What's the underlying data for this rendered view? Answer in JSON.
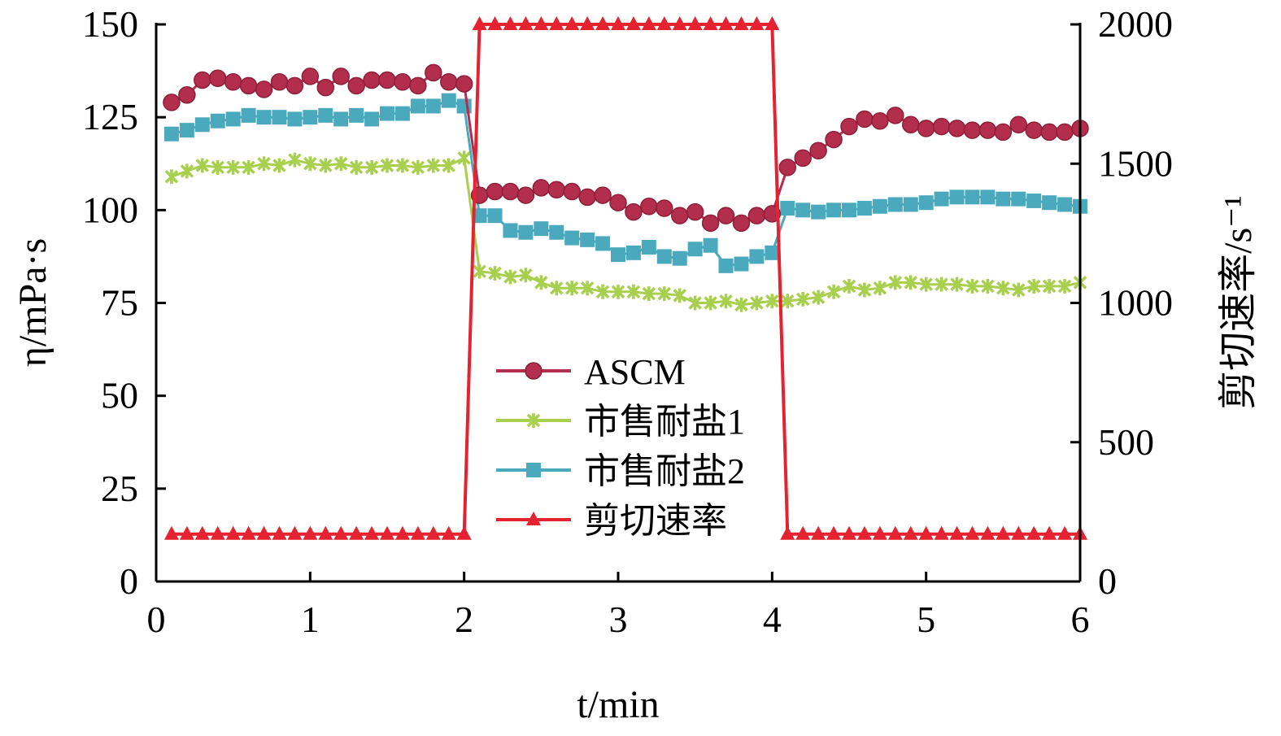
{
  "chart_data": {
    "type": "line",
    "xlabel": "t/min",
    "ylabel_left": "η/mPa·s",
    "ylabel_right": "剪切速率/s⁻¹",
    "xlim": [
      0,
      6
    ],
    "ylim_left": [
      0,
      150
    ],
    "ylim_right": [
      0,
      2000
    ],
    "xticks": [
      "0",
      "1",
      "2",
      "3",
      "4",
      "5",
      "6"
    ],
    "yticks_left": [
      "0",
      "25",
      "50",
      "75",
      "100",
      "125",
      "150"
    ],
    "yticks_right": [
      "0",
      "500",
      "1000",
      "1500",
      "2000"
    ],
    "grid": false,
    "legend_position": "center",
    "series": [
      {
        "name": "ASCM",
        "axis": "left",
        "color": "#b32d4c",
        "marker": "circle",
        "points": [
          [
            0.1,
            129
          ],
          [
            0.2,
            131
          ],
          [
            0.3,
            135
          ],
          [
            0.4,
            135.5
          ],
          [
            0.5,
            134.5
          ],
          [
            0.6,
            133.5
          ],
          [
            0.7,
            132.5
          ],
          [
            0.8,
            134.5
          ],
          [
            0.9,
            133.5
          ],
          [
            1.0,
            136
          ],
          [
            1.1,
            133
          ],
          [
            1.2,
            136
          ],
          [
            1.3,
            133.5
          ],
          [
            1.4,
            135
          ],
          [
            1.5,
            135
          ],
          [
            1.6,
            134.5
          ],
          [
            1.7,
            133.5
          ],
          [
            1.8,
            137
          ],
          [
            1.9,
            134.5
          ],
          [
            2.0,
            134
          ],
          [
            2.1,
            104
          ],
          [
            2.2,
            105
          ],
          [
            2.3,
            105
          ],
          [
            2.4,
            104
          ],
          [
            2.5,
            106
          ],
          [
            2.6,
            105.5
          ],
          [
            2.7,
            105
          ],
          [
            2.8,
            103.5
          ],
          [
            2.9,
            104
          ],
          [
            3.0,
            102
          ],
          [
            3.1,
            99.5
          ],
          [
            3.2,
            101
          ],
          [
            3.3,
            100.5
          ],
          [
            3.4,
            98.5
          ],
          [
            3.5,
            99.5
          ],
          [
            3.6,
            96.5
          ],
          [
            3.7,
            98.5
          ],
          [
            3.8,
            96.5
          ],
          [
            3.9,
            98.5
          ],
          [
            4.0,
            99
          ],
          [
            4.1,
            111.5
          ],
          [
            4.2,
            114
          ],
          [
            4.3,
            116
          ],
          [
            4.4,
            119
          ],
          [
            4.5,
            122.5
          ],
          [
            4.6,
            124.5
          ],
          [
            4.7,
            124
          ],
          [
            4.8,
            125.5
          ],
          [
            4.9,
            123
          ],
          [
            5.0,
            122
          ],
          [
            5.1,
            122.5
          ],
          [
            5.2,
            122
          ],
          [
            5.3,
            121.5
          ],
          [
            5.4,
            121.5
          ],
          [
            5.5,
            121
          ],
          [
            5.6,
            123
          ],
          [
            5.7,
            121.5
          ],
          [
            5.8,
            121
          ],
          [
            5.9,
            121
          ],
          [
            6.0,
            122
          ]
        ]
      },
      {
        "name": "市售耐盐1",
        "axis": "left",
        "color": "#a9cf4f",
        "marker": "star",
        "points": [
          [
            0.1,
            109
          ],
          [
            0.2,
            110.5
          ],
          [
            0.3,
            112
          ],
          [
            0.4,
            111.5
          ],
          [
            0.5,
            111.5
          ],
          [
            0.6,
            111.5
          ],
          [
            0.7,
            112.5
          ],
          [
            0.8,
            112
          ],
          [
            0.9,
            113.5
          ],
          [
            1.0,
            112.5
          ],
          [
            1.1,
            112
          ],
          [
            1.2,
            112.5
          ],
          [
            1.3,
            111.5
          ],
          [
            1.4,
            111.5
          ],
          [
            1.5,
            112
          ],
          [
            1.6,
            112
          ],
          [
            1.7,
            111.5
          ],
          [
            1.8,
            112
          ],
          [
            1.9,
            112
          ],
          [
            2.0,
            114
          ],
          [
            2.1,
            83.5
          ],
          [
            2.2,
            83
          ],
          [
            2.3,
            82
          ],
          [
            2.4,
            82.5
          ],
          [
            2.5,
            80.5
          ],
          [
            2.6,
            79
          ],
          [
            2.7,
            79
          ],
          [
            2.8,
            79
          ],
          [
            2.9,
            78
          ],
          [
            3.0,
            78
          ],
          [
            3.1,
            78
          ],
          [
            3.2,
            77.5
          ],
          [
            3.3,
            77.5
          ],
          [
            3.4,
            77
          ],
          [
            3.5,
            75
          ],
          [
            3.6,
            75
          ],
          [
            3.7,
            75.5
          ],
          [
            3.8,
            74.5
          ],
          [
            3.9,
            75
          ],
          [
            4.0,
            75.5
          ],
          [
            4.1,
            75.5
          ],
          [
            4.2,
            76
          ],
          [
            4.3,
            76.5
          ],
          [
            4.4,
            78
          ],
          [
            4.5,
            79.5
          ],
          [
            4.6,
            78.5
          ],
          [
            4.7,
            79
          ],
          [
            4.8,
            80.5
          ],
          [
            4.9,
            80.5
          ],
          [
            5.0,
            80
          ],
          [
            5.1,
            80
          ],
          [
            5.2,
            80
          ],
          [
            5.3,
            79.5
          ],
          [
            5.4,
            79.5
          ],
          [
            5.5,
            79
          ],
          [
            5.6,
            78.5
          ],
          [
            5.7,
            79.5
          ],
          [
            5.8,
            79.5
          ],
          [
            5.9,
            79.5
          ],
          [
            6.0,
            80.5
          ]
        ]
      },
      {
        "name": "市售耐盐2",
        "axis": "left",
        "color": "#4aa9bd",
        "marker": "square",
        "points": [
          [
            0.1,
            120.5
          ],
          [
            0.2,
            121.5
          ],
          [
            0.3,
            123
          ],
          [
            0.4,
            124
          ],
          [
            0.5,
            124.5
          ],
          [
            0.6,
            125.5
          ],
          [
            0.7,
            125
          ],
          [
            0.8,
            125
          ],
          [
            0.9,
            124.5
          ],
          [
            1.0,
            125
          ],
          [
            1.1,
            125.5
          ],
          [
            1.2,
            124.5
          ],
          [
            1.3,
            125.5
          ],
          [
            1.4,
            124.5
          ],
          [
            1.5,
            126
          ],
          [
            1.6,
            126
          ],
          [
            1.7,
            128
          ],
          [
            1.8,
            128
          ],
          [
            1.9,
            129.5
          ],
          [
            2.0,
            128
          ],
          [
            2.1,
            98.5
          ],
          [
            2.2,
            98.5
          ],
          [
            2.3,
            94.5
          ],
          [
            2.4,
            94
          ],
          [
            2.5,
            95
          ],
          [
            2.6,
            94
          ],
          [
            2.7,
            92.5
          ],
          [
            2.8,
            92
          ],
          [
            2.9,
            91
          ],
          [
            3.0,
            88
          ],
          [
            3.1,
            88.5
          ],
          [
            3.2,
            90
          ],
          [
            3.3,
            87.5
          ],
          [
            3.4,
            87
          ],
          [
            3.5,
            89.5
          ],
          [
            3.6,
            90.5
          ],
          [
            3.7,
            85
          ],
          [
            3.8,
            85.5
          ],
          [
            3.9,
            87.5
          ],
          [
            4.0,
            88.5
          ],
          [
            4.1,
            100.5
          ],
          [
            4.2,
            100
          ],
          [
            4.3,
            99.5
          ],
          [
            4.4,
            100
          ],
          [
            4.5,
            100
          ],
          [
            4.6,
            100.5
          ],
          [
            4.7,
            101
          ],
          [
            4.8,
            101.5
          ],
          [
            4.9,
            101.5
          ],
          [
            5.0,
            102
          ],
          [
            5.1,
            103
          ],
          [
            5.2,
            103.5
          ],
          [
            5.3,
            103.5
          ],
          [
            5.4,
            103.5
          ],
          [
            5.5,
            103
          ],
          [
            5.6,
            103
          ],
          [
            5.7,
            102.5
          ],
          [
            5.8,
            102
          ],
          [
            5.9,
            101.5
          ],
          [
            6.0,
            101
          ]
        ]
      },
      {
        "name": "剪切速率",
        "axis": "right",
        "color": "#e52330",
        "marker": "triangle",
        "points": [
          [
            0.1,
            170
          ],
          [
            0.2,
            170
          ],
          [
            0.3,
            170
          ],
          [
            0.4,
            170
          ],
          [
            0.5,
            170
          ],
          [
            0.6,
            170
          ],
          [
            0.7,
            170
          ],
          [
            0.8,
            170
          ],
          [
            0.9,
            170
          ],
          [
            1.0,
            170
          ],
          [
            1.1,
            170
          ],
          [
            1.2,
            170
          ],
          [
            1.3,
            170
          ],
          [
            1.4,
            170
          ],
          [
            1.5,
            170
          ],
          [
            1.6,
            170
          ],
          [
            1.7,
            170
          ],
          [
            1.8,
            170
          ],
          [
            1.9,
            170
          ],
          [
            2.0,
            170
          ],
          [
            2.1,
            2000
          ],
          [
            2.2,
            2000
          ],
          [
            2.3,
            2000
          ],
          [
            2.4,
            2000
          ],
          [
            2.5,
            2000
          ],
          [
            2.6,
            2000
          ],
          [
            2.7,
            2000
          ],
          [
            2.8,
            2000
          ],
          [
            2.9,
            2000
          ],
          [
            3.0,
            2000
          ],
          [
            3.1,
            2000
          ],
          [
            3.2,
            2000
          ],
          [
            3.3,
            2000
          ],
          [
            3.4,
            2000
          ],
          [
            3.5,
            2000
          ],
          [
            3.6,
            2000
          ],
          [
            3.7,
            2000
          ],
          [
            3.8,
            2000
          ],
          [
            3.9,
            2000
          ],
          [
            4.0,
            2000
          ],
          [
            4.1,
            170
          ],
          [
            4.2,
            170
          ],
          [
            4.3,
            170
          ],
          [
            4.4,
            170
          ],
          [
            4.5,
            170
          ],
          [
            4.6,
            170
          ],
          [
            4.7,
            170
          ],
          [
            4.8,
            170
          ],
          [
            4.9,
            170
          ],
          [
            5.0,
            170
          ],
          [
            5.1,
            170
          ],
          [
            5.2,
            170
          ],
          [
            5.3,
            170
          ],
          [
            5.4,
            170
          ],
          [
            5.5,
            170
          ],
          [
            5.6,
            170
          ],
          [
            5.7,
            170
          ],
          [
            5.8,
            170
          ],
          [
            5.9,
            170
          ],
          [
            6.0,
            170
          ]
        ]
      }
    ]
  }
}
